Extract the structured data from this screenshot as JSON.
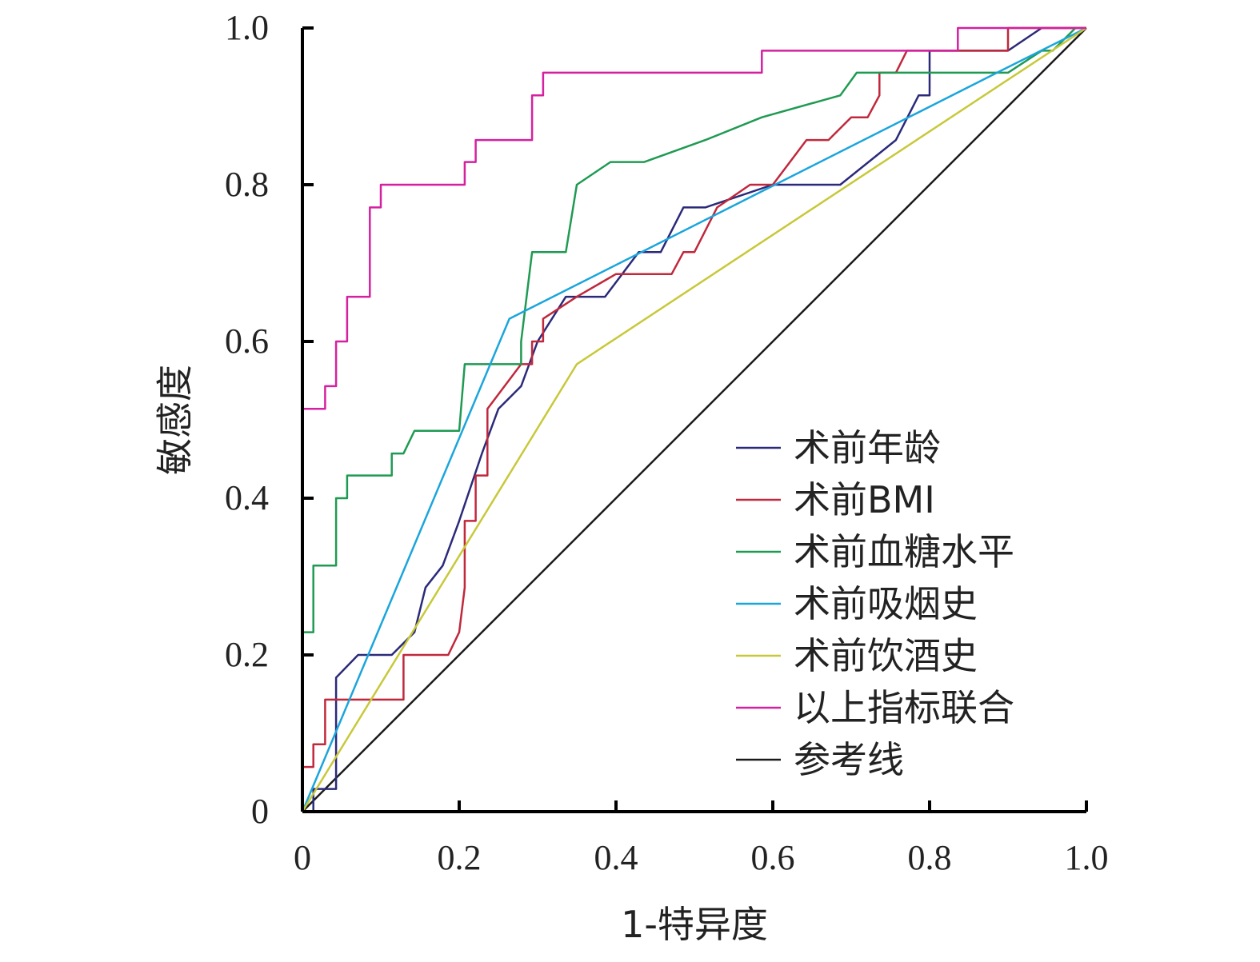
{
  "chart_data": {
    "type": "line",
    "xlabel": "1-特异度",
    "ylabel": "敏感度",
    "xlim": [
      0,
      1.0
    ],
    "ylim": [
      0,
      1.0
    ],
    "x_ticks": [
      "0",
      "0.2",
      "0.4",
      "0.6",
      "0.8",
      "1.0"
    ],
    "y_ticks": [
      "0",
      "0.2",
      "0.4",
      "0.6",
      "0.8",
      "1.0"
    ],
    "legend_position": "bottom-right",
    "grid": false,
    "series": [
      {
        "name": "术前年龄",
        "color": "#2b2a7a",
        "points": [
          [
            0,
            0
          ],
          [
            0.014,
            0
          ],
          [
            0.014,
            0.029
          ],
          [
            0.043,
            0.029
          ],
          [
            0.043,
            0.171
          ],
          [
            0.071,
            0.2
          ],
          [
            0.114,
            0.2
          ],
          [
            0.143,
            0.229
          ],
          [
            0.157,
            0.286
          ],
          [
            0.179,
            0.314
          ],
          [
            0.2,
            0.371
          ],
          [
            0.229,
            0.457
          ],
          [
            0.25,
            0.514
          ],
          [
            0.279,
            0.543
          ],
          [
            0.3,
            0.6
          ],
          [
            0.336,
            0.657
          ],
          [
            0.386,
            0.657
          ],
          [
            0.429,
            0.714
          ],
          [
            0.457,
            0.714
          ],
          [
            0.486,
            0.771
          ],
          [
            0.514,
            0.771
          ],
          [
            0.6,
            0.8
          ],
          [
            0.686,
            0.8
          ],
          [
            0.757,
            0.857
          ],
          [
            0.786,
            0.914
          ],
          [
            0.8,
            0.914
          ],
          [
            0.8,
            0.971
          ],
          [
            0.886,
            0.971
          ],
          [
            0.9,
            0.971
          ],
          [
            0.943,
            1.0
          ],
          [
            1.0,
            1.0
          ]
        ]
      },
      {
        "name": "术前BMI",
        "color": "#c0283c",
        "points": [
          [
            0,
            0
          ],
          [
            0,
            0.057
          ],
          [
            0.014,
            0.057
          ],
          [
            0.014,
            0.086
          ],
          [
            0.029,
            0.086
          ],
          [
            0.029,
            0.143
          ],
          [
            0.129,
            0.143
          ],
          [
            0.129,
            0.2
          ],
          [
            0.186,
            0.2
          ],
          [
            0.2,
            0.229
          ],
          [
            0.207,
            0.286
          ],
          [
            0.207,
            0.371
          ],
          [
            0.221,
            0.371
          ],
          [
            0.221,
            0.429
          ],
          [
            0.236,
            0.429
          ],
          [
            0.236,
            0.514
          ],
          [
            0.279,
            0.571
          ],
          [
            0.293,
            0.571
          ],
          [
            0.293,
            0.6
          ],
          [
            0.307,
            0.6
          ],
          [
            0.307,
            0.629
          ],
          [
            0.35,
            0.657
          ],
          [
            0.4,
            0.686
          ],
          [
            0.471,
            0.686
          ],
          [
            0.486,
            0.714
          ],
          [
            0.5,
            0.714
          ],
          [
            0.529,
            0.771
          ],
          [
            0.571,
            0.8
          ],
          [
            0.6,
            0.8
          ],
          [
            0.643,
            0.857
          ],
          [
            0.671,
            0.857
          ],
          [
            0.7,
            0.886
          ],
          [
            0.721,
            0.886
          ],
          [
            0.736,
            0.914
          ],
          [
            0.736,
            0.943
          ],
          [
            0.757,
            0.943
          ],
          [
            0.771,
            0.971
          ],
          [
            0.886,
            0.971
          ],
          [
            0.9,
            0.971
          ],
          [
            0.9,
            1.0
          ],
          [
            1.0,
            1.0
          ]
        ]
      },
      {
        "name": "术前血糖水平",
        "color": "#1f9a52",
        "points": [
          [
            0,
            0
          ],
          [
            0,
            0.229
          ],
          [
            0.014,
            0.229
          ],
          [
            0.014,
            0.314
          ],
          [
            0.043,
            0.314
          ],
          [
            0.043,
            0.4
          ],
          [
            0.057,
            0.4
          ],
          [
            0.057,
            0.429
          ],
          [
            0.114,
            0.429
          ],
          [
            0.114,
            0.457
          ],
          [
            0.129,
            0.457
          ],
          [
            0.143,
            0.486
          ],
          [
            0.2,
            0.486
          ],
          [
            0.207,
            0.571
          ],
          [
            0.279,
            0.571
          ],
          [
            0.279,
            0.6
          ],
          [
            0.293,
            0.714
          ],
          [
            0.336,
            0.714
          ],
          [
            0.35,
            0.8
          ],
          [
            0.393,
            0.829
          ],
          [
            0.436,
            0.829
          ],
          [
            0.514,
            0.857
          ],
          [
            0.586,
            0.886
          ],
          [
            0.686,
            0.914
          ],
          [
            0.707,
            0.943
          ],
          [
            0.9,
            0.943
          ],
          [
            0.943,
            0.971
          ],
          [
            0.957,
            0.971
          ],
          [
            0.986,
            1.0
          ],
          [
            1.0,
            1.0
          ]
        ]
      },
      {
        "name": "术前吸烟史",
        "color": "#1aa5dc",
        "points": [
          [
            0,
            0
          ],
          [
            0.264,
            0.629
          ],
          [
            0.886,
            0.943
          ],
          [
            1.0,
            1.0
          ]
        ]
      },
      {
        "name": "术前饮酒史",
        "color": "#c8c83a",
        "points": [
          [
            0,
            0
          ],
          [
            0.35,
            0.571
          ],
          [
            1.0,
            1.0
          ]
        ]
      },
      {
        "name": "以上指标联合",
        "color": "#d4219f",
        "points": [
          [
            0,
            0
          ],
          [
            0,
            0.514
          ],
          [
            0.029,
            0.514
          ],
          [
            0.029,
            0.543
          ],
          [
            0.043,
            0.543
          ],
          [
            0.043,
            0.6
          ],
          [
            0.057,
            0.6
          ],
          [
            0.057,
            0.657
          ],
          [
            0.086,
            0.657
          ],
          [
            0.086,
            0.771
          ],
          [
            0.1,
            0.771
          ],
          [
            0.1,
            0.8
          ],
          [
            0.207,
            0.8
          ],
          [
            0.207,
            0.829
          ],
          [
            0.221,
            0.829
          ],
          [
            0.221,
            0.857
          ],
          [
            0.293,
            0.857
          ],
          [
            0.293,
            0.914
          ],
          [
            0.307,
            0.914
          ],
          [
            0.307,
            0.943
          ],
          [
            0.586,
            0.943
          ],
          [
            0.586,
            0.971
          ],
          [
            0.836,
            0.971
          ],
          [
            0.836,
            1.0
          ],
          [
            1.0,
            1.0
          ]
        ]
      },
      {
        "name": "参考线",
        "color": "#1a1a1a",
        "points": [
          [
            0,
            0
          ],
          [
            1.0,
            1.0
          ]
        ]
      }
    ]
  }
}
